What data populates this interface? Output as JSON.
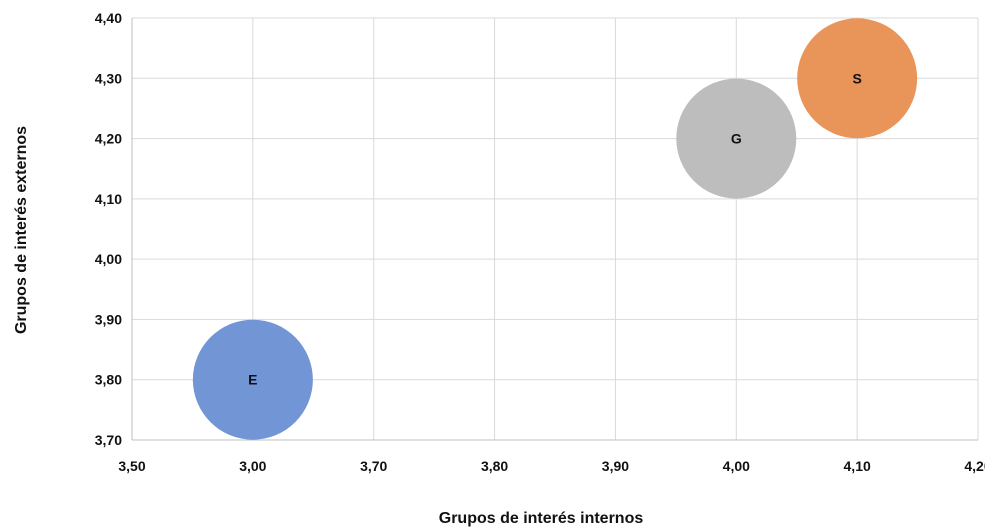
{
  "chart_data": {
    "type": "scatter",
    "xlabel": "Grupos de interés internos",
    "ylabel": "Grupos de interés externos",
    "x_tick_labels": [
      "3,50",
      "3,00",
      "3,70",
      "3,80",
      "3,90",
      "4,00",
      "4,10",
      "4,20"
    ],
    "y_tick_labels": [
      "3,70",
      "3,80",
      "3,90",
      "4,00",
      "4,10",
      "4,20",
      "4,30",
      "4,40"
    ],
    "ylim": [
      3.7,
      4.4
    ],
    "grid": true,
    "points": [
      {
        "label": "E",
        "x": 3.6,
        "y": 3.8,
        "color": "#7295D6"
      },
      {
        "label": "G",
        "x": 4.0,
        "y": 4.2,
        "color": "#BDBDBD"
      },
      {
        "label": "S",
        "x": 4.1,
        "y": 4.3,
        "color": "#E9955A"
      }
    ]
  }
}
